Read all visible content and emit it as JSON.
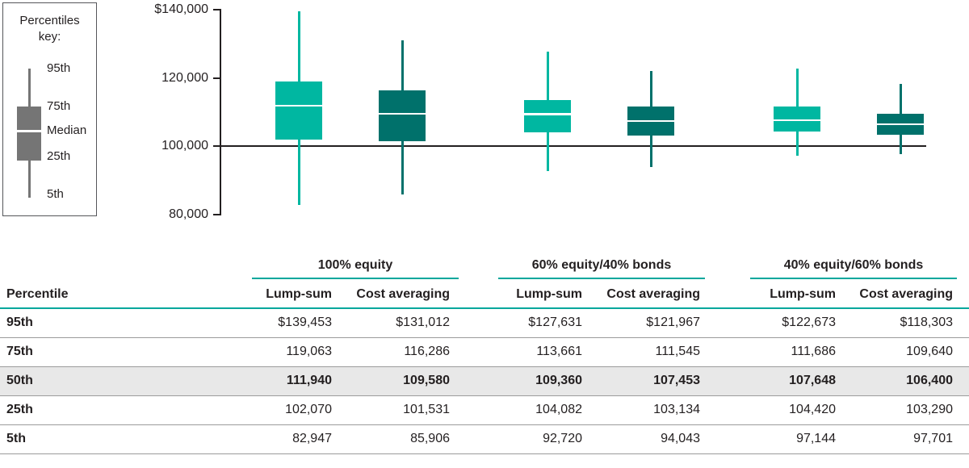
{
  "colors": {
    "lump_sum": "#00b7a1",
    "cost_averaging": "#00716b",
    "table_accent": "#00a79c",
    "key_gray": "#757575",
    "key_border": "#55565a",
    "text": "#231f20",
    "axis": "#231f20",
    "separator": "#9b9b9b",
    "row_highlight_bg": "#e8e8e8"
  },
  "percentiles_key": {
    "title_lines": [
      "Percentiles",
      "key:"
    ],
    "labels": [
      "95th",
      "75th",
      "Median",
      "25th",
      "5th"
    ]
  },
  "chart_data": {
    "type": "boxplot",
    "title": "",
    "xlabel": "",
    "ylabel": "",
    "ylim": [
      80000,
      140000
    ],
    "grid": false,
    "reference_line": 100000,
    "y_ticks": [
      {
        "label": "$140,000",
        "value": 140000
      },
      {
        "label": "120,000",
        "value": 120000
      },
      {
        "label": "100,000",
        "value": 100000
      },
      {
        "label": "80,000",
        "value": 80000
      }
    ],
    "groups": [
      "100% equity",
      "60% equity/40% bonds",
      "40% equity/60% bonds"
    ],
    "series": [
      {
        "name": "Lump-sum",
        "color_key": "lump_sum",
        "boxes": [
          {
            "group": "100% equity",
            "p5": 82947,
            "p25": 102070,
            "median": 111940,
            "p75": 119063,
            "p95": 139453
          },
          {
            "group": "60% equity/40% bonds",
            "p5": 92720,
            "p25": 104082,
            "median": 109360,
            "p75": 113661,
            "p95": 127631
          },
          {
            "group": "40% equity/60% bonds",
            "p5": 97144,
            "p25": 104420,
            "median": 107648,
            "p75": 111686,
            "p95": 122673
          }
        ]
      },
      {
        "name": "Cost averaging",
        "color_key": "cost_averaging",
        "boxes": [
          {
            "group": "100% equity",
            "p5": 85906,
            "p25": 101531,
            "median": 109580,
            "p75": 116286,
            "p95": 131012
          },
          {
            "group": "60% equity/40% bonds",
            "p5": 94043,
            "p25": 103134,
            "median": 107453,
            "p75": 111545,
            "p95": 121967
          },
          {
            "group": "40% equity/60% bonds",
            "p5": 97701,
            "p25": 103290,
            "median": 106400,
            "p75": 109640,
            "p95": 118303
          }
        ]
      }
    ]
  },
  "table": {
    "row_header": "Percentile",
    "group_headers": [
      "100% equity",
      "60% equity/40% bonds",
      "40% equity/60% bonds"
    ],
    "sub_headers": [
      "Lump-sum",
      "Cost averaging"
    ],
    "rows": [
      {
        "label": "95th",
        "highlight": false,
        "values": [
          "$139,453",
          "$131,012",
          "$127,631",
          "$121,967",
          "$122,673",
          "$118,303"
        ]
      },
      {
        "label": "75th",
        "highlight": false,
        "values": [
          "119,063",
          "116,286",
          "113,661",
          "111,545",
          "111,686",
          "109,640"
        ]
      },
      {
        "label": "50th",
        "highlight": true,
        "values": [
          "111,940",
          "109,580",
          "109,360",
          "107,453",
          "107,648",
          "106,400"
        ]
      },
      {
        "label": "25th",
        "highlight": false,
        "values": [
          "102,070",
          "101,531",
          "104,082",
          "103,134",
          "104,420",
          "103,290"
        ]
      },
      {
        "label": "5th",
        "highlight": false,
        "values": [
          "82,947",
          "85,906",
          "92,720",
          "94,043",
          "97,144",
          "97,701"
        ]
      }
    ]
  }
}
